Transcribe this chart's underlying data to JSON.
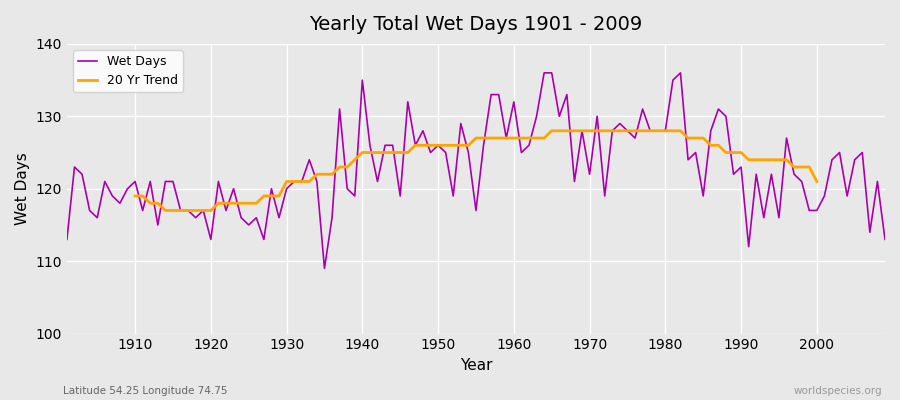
{
  "title": "Yearly Total Wet Days 1901 - 2009",
  "xlabel": "Year",
  "ylabel": "Wet Days",
  "xlim": [
    1901,
    2009
  ],
  "ylim": [
    100,
    140
  ],
  "yticks": [
    100,
    110,
    120,
    130,
    140
  ],
  "xticks": [
    1910,
    1920,
    1930,
    1940,
    1950,
    1960,
    1970,
    1980,
    1990,
    2000
  ],
  "line_color": "#aa00aa",
  "trend_color": "#ffa500",
  "bg_color": "#e8e8e8",
  "grid_color": "#ffffff",
  "subtitle_left": "Latitude 54.25 Longitude 74.75",
  "subtitle_right": "worldspecies.org",
  "years": [
    1901,
    1902,
    1903,
    1904,
    1905,
    1906,
    1907,
    1908,
    1909,
    1910,
    1911,
    1912,
    1913,
    1914,
    1915,
    1916,
    1917,
    1918,
    1919,
    1920,
    1921,
    1922,
    1923,
    1924,
    1925,
    1926,
    1927,
    1928,
    1929,
    1930,
    1931,
    1932,
    1933,
    1934,
    1935,
    1936,
    1937,
    1938,
    1939,
    1940,
    1941,
    1942,
    1943,
    1944,
    1945,
    1946,
    1947,
    1948,
    1949,
    1950,
    1951,
    1952,
    1953,
    1954,
    1955,
    1956,
    1957,
    1958,
    1959,
    1960,
    1961,
    1962,
    1963,
    1964,
    1965,
    1966,
    1967,
    1968,
    1969,
    1970,
    1971,
    1972,
    1973,
    1974,
    1975,
    1976,
    1977,
    1978,
    1979,
    1980,
    1981,
    1982,
    1983,
    1984,
    1985,
    1986,
    1987,
    1988,
    1989,
    1990,
    1991,
    1992,
    1993,
    1994,
    1995,
    1996,
    1997,
    1998,
    1999,
    2000,
    2001,
    2002,
    2003,
    2004,
    2005,
    2006,
    2007,
    2008,
    2009
  ],
  "wet_days": [
    113,
    123,
    122,
    117,
    116,
    121,
    119,
    118,
    120,
    121,
    117,
    121,
    115,
    121,
    121,
    117,
    117,
    116,
    117,
    113,
    121,
    117,
    120,
    116,
    115,
    116,
    113,
    120,
    116,
    120,
    121,
    121,
    124,
    121,
    109,
    116,
    131,
    120,
    119,
    135,
    126,
    121,
    126,
    126,
    119,
    132,
    126,
    128,
    125,
    126,
    125,
    119,
    129,
    125,
    117,
    126,
    133,
    133,
    127,
    132,
    125,
    126,
    130,
    136,
    136,
    130,
    133,
    121,
    128,
    122,
    130,
    119,
    128,
    129,
    128,
    127,
    131,
    128,
    128,
    128,
    135,
    136,
    124,
    125,
    119,
    128,
    131,
    130,
    122,
    123,
    112,
    122,
    116,
    122,
    116,
    127,
    122,
    121,
    117,
    117,
    119,
    124,
    125,
    119,
    124,
    125,
    114,
    121,
    113
  ],
  "trend_years": [
    1910,
    1911,
    1912,
    1913,
    1914,
    1915,
    1916,
    1917,
    1918,
    1919,
    1920,
    1921,
    1922,
    1923,
    1924,
    1925,
    1926,
    1927,
    1928,
    1929,
    1930,
    1931,
    1932,
    1933,
    1934,
    1935,
    1936,
    1937,
    1938,
    1939,
    1940,
    1941,
    1942,
    1943,
    1944,
    1945,
    1946,
    1947,
    1948,
    1949,
    1950,
    1951,
    1952,
    1953,
    1954,
    1955,
    1956,
    1957,
    1958,
    1959,
    1960,
    1961,
    1962,
    1963,
    1964,
    1965,
    1966,
    1967,
    1968,
    1969,
    1970,
    1971,
    1972,
    1973,
    1974,
    1975,
    1976,
    1977,
    1978,
    1979,
    1980,
    1981,
    1982,
    1983,
    1984,
    1985,
    1986,
    1987,
    1988,
    1989,
    1990,
    1991,
    1992,
    1993,
    1994,
    1995,
    1996,
    1997,
    1998,
    1999,
    2000
  ],
  "trend_values": [
    119,
    119,
    118,
    118,
    117,
    117,
    117,
    117,
    117,
    117,
    117,
    118,
    118,
    118,
    118,
    118,
    118,
    119,
    119,
    119,
    121,
    121,
    121,
    121,
    122,
    122,
    122,
    123,
    123,
    124,
    125,
    125,
    125,
    125,
    125,
    125,
    125,
    126,
    126,
    126,
    126,
    126,
    126,
    126,
    126,
    127,
    127,
    127,
    127,
    127,
    127,
    127,
    127,
    127,
    127,
    128,
    128,
    128,
    128,
    128,
    128,
    128,
    128,
    128,
    128,
    128,
    128,
    128,
    128,
    128,
    128,
    128,
    128,
    127,
    127,
    127,
    126,
    126,
    125,
    125,
    125,
    124,
    124,
    124,
    124,
    124,
    124,
    123,
    123,
    123,
    121
  ]
}
